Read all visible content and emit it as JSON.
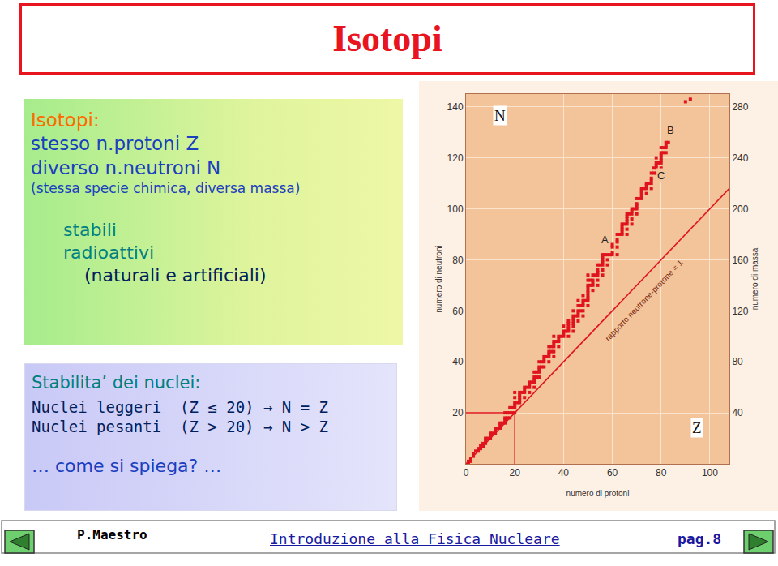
{
  "title": "Isotopi",
  "definition": {
    "heading": "Isotopi:",
    "lines": [
      "stesso n.protoni Z",
      "diverso n.neutroni N"
    ],
    "note": "(stessa specie chimica, diversa massa)",
    "kinds": [
      "stabili",
      "radioattivi"
    ],
    "kinds_note": "(naturali e artificiali)"
  },
  "stability": {
    "heading": "Stabilita’ dei nuclei:",
    "rules": [
      "Nuclei leggeri  (Z ≤ 20) → N = Z",
      "Nuclei pesanti  (Z > 20) → N > Z"
    ],
    "question": "… come si spiega? …"
  },
  "footer": {
    "author": "P.Maestro",
    "course": "Introduzione alla Fisica Nucleare",
    "page": "pag.8"
  },
  "chart_data": {
    "type": "scatter",
    "x_label": "numero di protoni",
    "y_label": "numero di neutroni",
    "y2_label": "numero di massa",
    "symbols": {
      "x": "Z",
      "y": "N"
    },
    "xlim": [
      0,
      108
    ],
    "xticks": [
      0,
      20,
      40,
      60,
      80,
      100
    ],
    "ylim": [
      0,
      145
    ],
    "yticks": [
      20,
      40,
      60,
      80,
      100,
      120,
      140
    ],
    "y2lim": [
      0,
      290
    ],
    "y2ticks": [
      40,
      80,
      120,
      160,
      200,
      240,
      280
    ],
    "grid": true,
    "marked_point": {
      "x": 20,
      "y": 20
    },
    "series": [
      {
        "type": "scatter",
        "color": "#e0141e",
        "marker": "square",
        "x": [
          1,
          1,
          2,
          2,
          3,
          3,
          4,
          5,
          5,
          6,
          6,
          7,
          7,
          8,
          8,
          8,
          9,
          10,
          10,
          10,
          11,
          12,
          12,
          12,
          13,
          14,
          14,
          14,
          15,
          16,
          16,
          16,
          16,
          17,
          17,
          18,
          18,
          18,
          19,
          19,
          20,
          20,
          20,
          20,
          20,
          20,
          21,
          22,
          22,
          22,
          22,
          22,
          23,
          24,
          24,
          24,
          24,
          25,
          26,
          26,
          26,
          26,
          27,
          28,
          28,
          28,
          28,
          28,
          29,
          29,
          30,
          30,
          30,
          30,
          30,
          31,
          31,
          32,
          32,
          32,
          32,
          33,
          34,
          34,
          34,
          34,
          34,
          35,
          35,
          36,
          36,
          36,
          36,
          36,
          36,
          37,
          38,
          38,
          38,
          38,
          39,
          40,
          40,
          40,
          40,
          41,
          42,
          42,
          42,
          42,
          42,
          42,
          44,
          44,
          44,
          44,
          44,
          44,
          44,
          45,
          46,
          46,
          46,
          46,
          46,
          46,
          47,
          47,
          48,
          48,
          48,
          48,
          48,
          48,
          49,
          50,
          50,
          50,
          50,
          50,
          50,
          50,
          50,
          50,
          50,
          51,
          51,
          52,
          52,
          52,
          52,
          52,
          53,
          54,
          54,
          54,
          54,
          54,
          54,
          55,
          56,
          56,
          56,
          56,
          56,
          56,
          56,
          57,
          58,
          58,
          58,
          59,
          60,
          60,
          60,
          60,
          62,
          62,
          62,
          62,
          62,
          63,
          64,
          64,
          64,
          64,
          64,
          65,
          66,
          66,
          66,
          66,
          66,
          66,
          66,
          67,
          68,
          68,
          68,
          68,
          68,
          69,
          70,
          70,
          70,
          70,
          70,
          71,
          72,
          72,
          72,
          72,
          72,
          73,
          74,
          74,
          74,
          74,
          75,
          76,
          76,
          76,
          76,
          76,
          77,
          77,
          78,
          78,
          78,
          78,
          78,
          79,
          80,
          80,
          80,
          80,
          80,
          80,
          80,
          81,
          81,
          82,
          82,
          82,
          82,
          83,
          90,
          92
        ],
        "values": [
          0,
          1,
          1,
          2,
          3,
          4,
          5,
          5,
          6,
          6,
          7,
          7,
          8,
          8,
          9,
          10,
          10,
          10,
          11,
          12,
          12,
          12,
          13,
          14,
          14,
          14,
          15,
          16,
          16,
          16,
          17,
          18,
          20,
          18,
          20,
          18,
          20,
          22,
          20,
          22,
          20,
          22,
          23,
          24,
          26,
          28,
          24,
          24,
          25,
          26,
          27,
          28,
          28,
          26,
          28,
          29,
          30,
          30,
          28,
          30,
          31,
          32,
          32,
          30,
          32,
          33,
          34,
          36,
          34,
          36,
          34,
          36,
          37,
          38,
          40,
          38,
          40,
          38,
          40,
          41,
          42,
          42,
          40,
          42,
          43,
          44,
          46,
          44,
          46,
          42,
          44,
          46,
          47,
          48,
          50,
          48,
          46,
          48,
          49,
          50,
          50,
          50,
          51,
          52,
          54,
          52,
          50,
          52,
          53,
          54,
          55,
          56,
          52,
          54,
          55,
          56,
          57,
          58,
          60,
          58,
          56,
          58,
          59,
          60,
          62,
          64,
          60,
          62,
          58,
          60,
          62,
          63,
          64,
          66,
          64,
          62,
          64,
          65,
          66,
          67,
          68,
          69,
          70,
          72,
          74,
          70,
          72,
          68,
          70,
          71,
          72,
          74,
          74,
          70,
          72,
          74,
          75,
          76,
          78,
          78,
          74,
          76,
          78,
          79,
          80,
          81,
          82,
          82,
          78,
          80,
          82,
          82,
          82,
          83,
          85,
          86,
          82,
          85,
          87,
          88,
          90,
          90,
          90,
          91,
          92,
          93,
          94,
          94,
          90,
          92,
          94,
          95,
          96,
          97,
          98,
          98,
          94,
          96,
          98,
          99,
          100,
          100,
          98,
          100,
          101,
          102,
          104,
          104,
          104,
          105,
          106,
          107,
          108,
          108,
          106,
          108,
          109,
          110,
          110,
          108,
          110,
          111,
          112,
          114,
          114,
          116,
          114,
          116,
          117,
          118,
          120,
          118,
          116,
          118,
          119,
          120,
          121,
          122,
          124,
          122,
          124,
          122,
          124,
          125,
          126,
          126,
          142,
          143
        ]
      },
      {
        "type": "line",
        "color": "#e0141e",
        "line_style": "solid",
        "x": [
          0,
          108
        ],
        "values": [
          0,
          108
        ]
      }
    ],
    "annotations": [
      {
        "text": "A",
        "x": 57,
        "y": 88
      },
      {
        "text": "B",
        "x": 84,
        "y": 131
      },
      {
        "text": "C",
        "x": 80,
        "y": 113
      },
      {
        "text": "rapporto neutrone-protone = 1",
        "x": 73,
        "y": 64
      }
    ]
  }
}
